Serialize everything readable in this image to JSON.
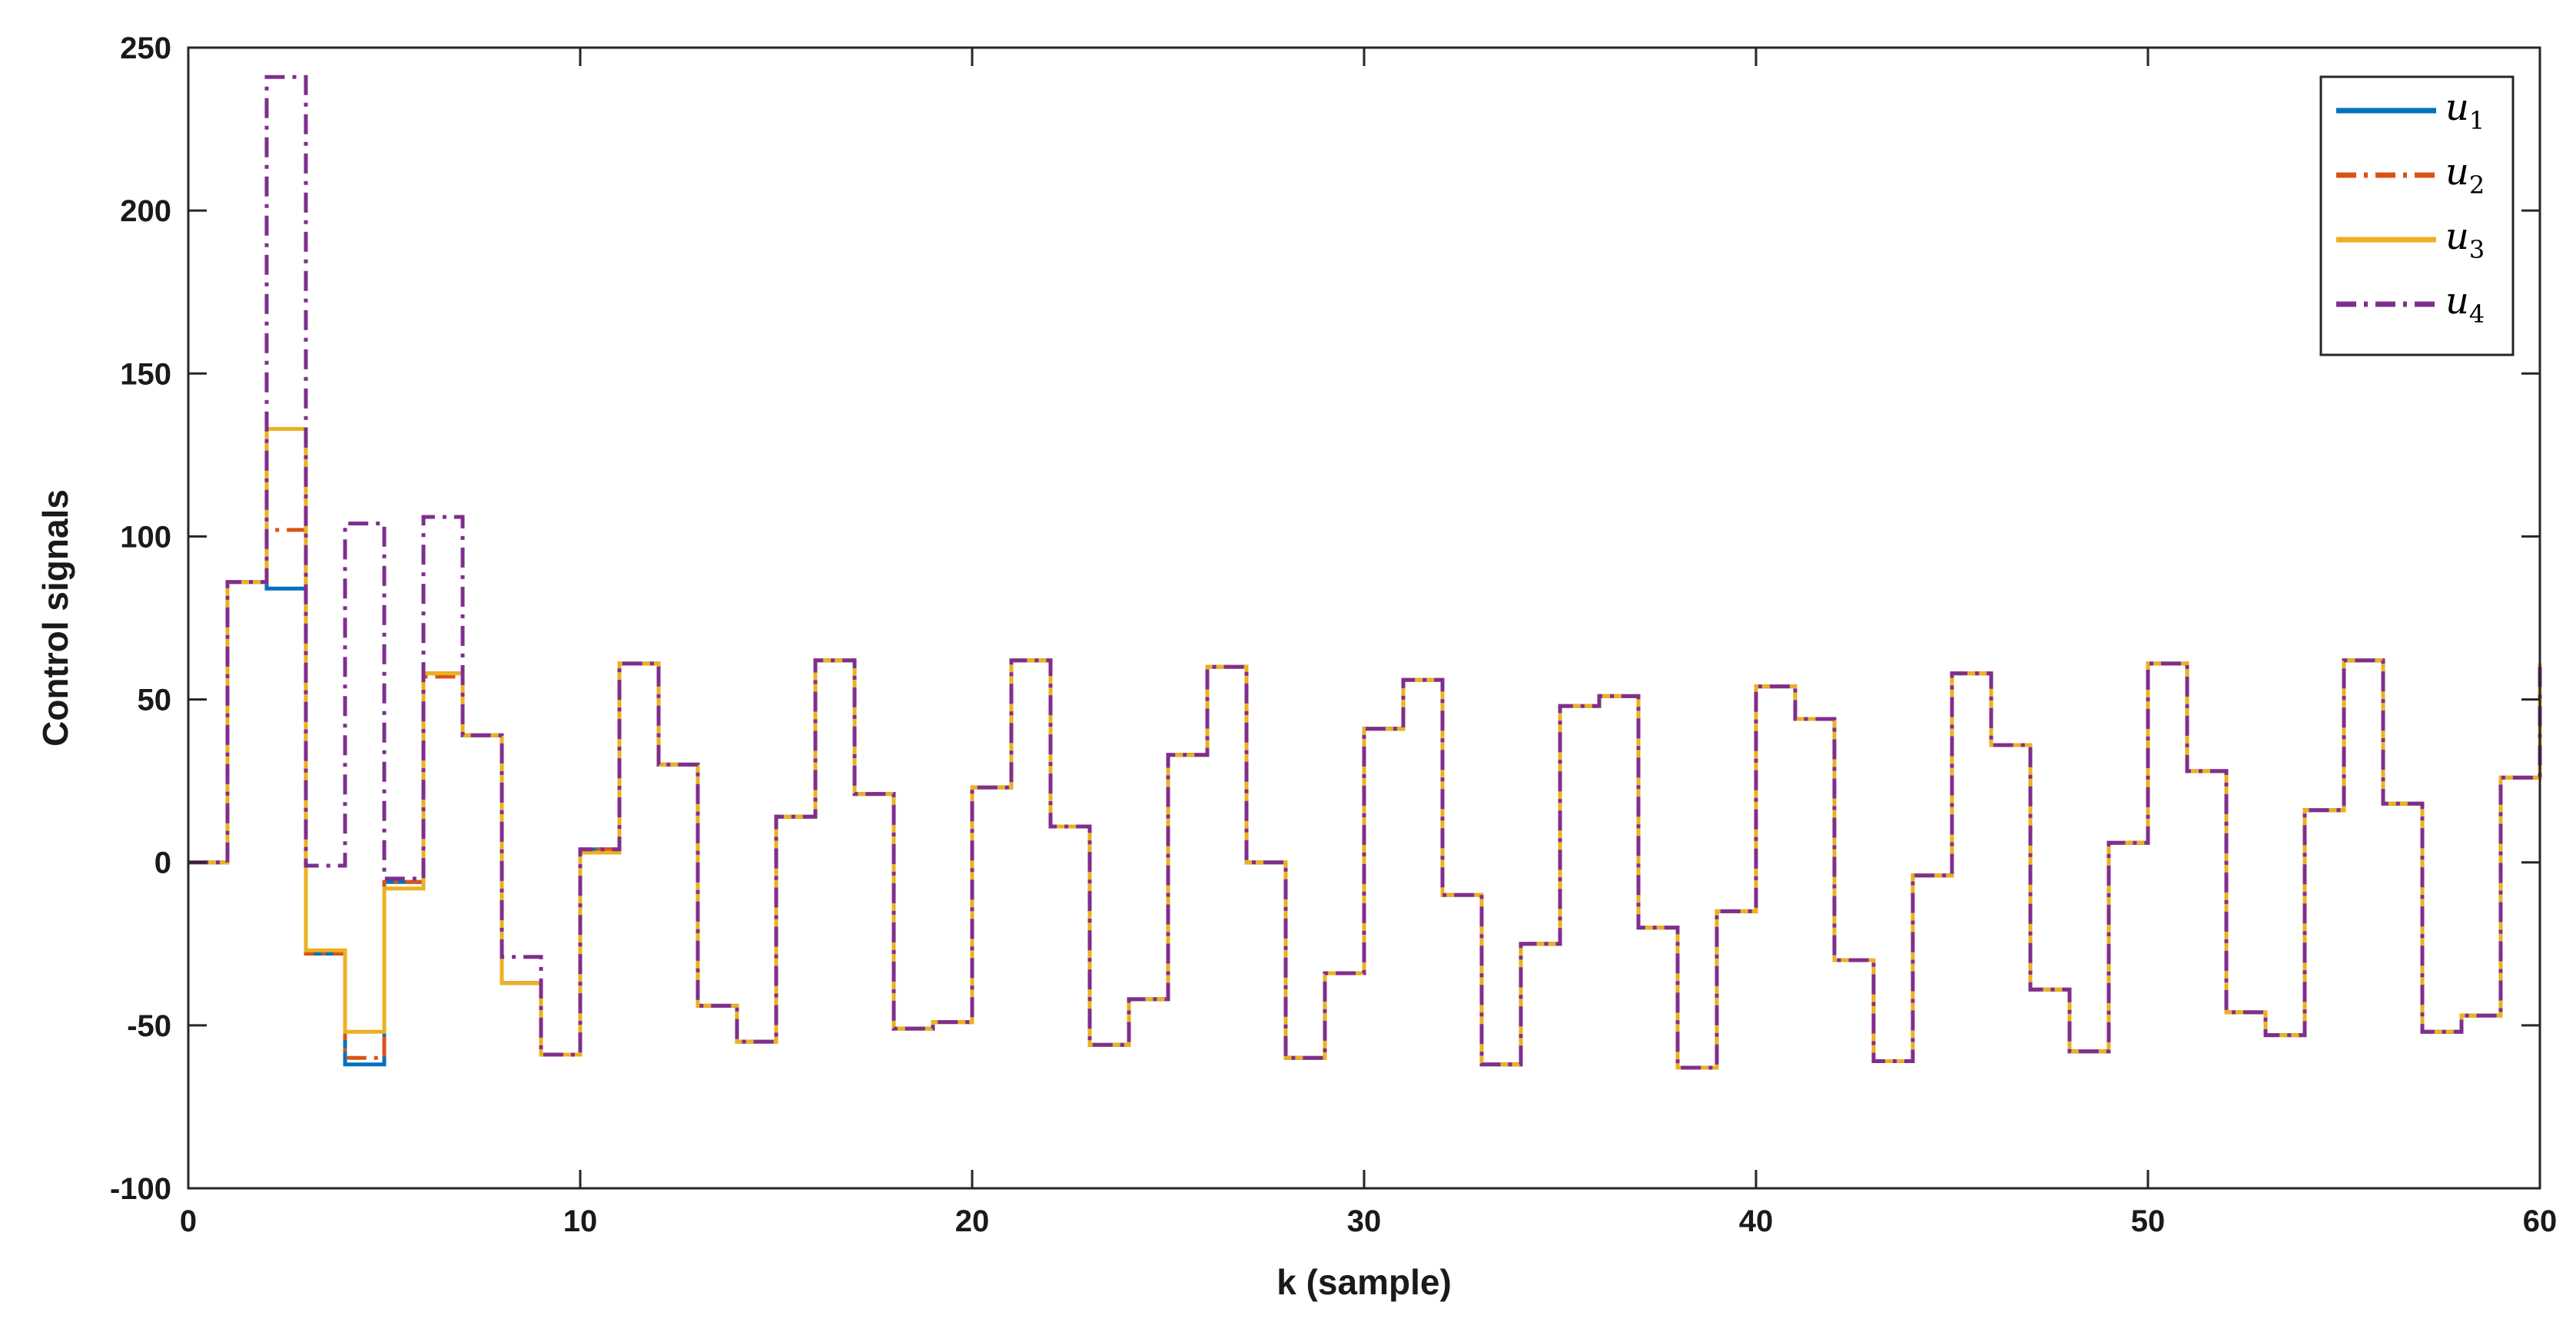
{
  "chart_data": {
    "type": "line",
    "step": "post",
    "title": "",
    "xlabel": "k (sample)",
    "ylabel": "Control signals",
    "xlim": [
      0,
      60
    ],
    "ylim": [
      -100,
      250
    ],
    "xticks": [
      0,
      10,
      20,
      30,
      40,
      50,
      60
    ],
    "yticks": [
      -100,
      -50,
      0,
      50,
      100,
      150,
      200,
      250
    ],
    "grid": false,
    "legend_position": "top-right",
    "x": [
      0,
      1,
      2,
      3,
      4,
      5,
      6,
      7,
      8,
      9,
      10,
      11,
      12,
      13,
      14,
      15,
      16,
      17,
      18,
      19,
      20,
      21,
      22,
      23,
      24,
      25,
      26,
      27,
      28,
      29,
      30,
      31,
      32,
      33,
      34,
      35,
      36,
      37,
      38,
      39,
      40,
      41,
      42,
      43,
      44,
      45,
      46,
      47,
      48,
      49,
      50,
      51,
      52,
      53,
      54,
      55,
      56,
      57,
      58,
      59,
      60
    ],
    "series": [
      {
        "name": "u",
        "subscript": "1",
        "color": "#0072BD",
        "dash": "solid",
        "values": [
          0,
          86,
          84,
          -28,
          -62,
          -6,
          58,
          39,
          -37,
          -59,
          4,
          61,
          30,
          -44,
          -55,
          14,
          62,
          21,
          -51,
          -49,
          23,
          62,
          11,
          -56,
          -42,
          33,
          60,
          0,
          -60,
          -34,
          41,
          56,
          -10,
          -62,
          -25,
          48,
          51,
          -20,
          -63,
          -15,
          54,
          44,
          -30,
          -61,
          -4,
          58,
          36,
          -39,
          -58,
          6,
          61,
          28,
          -46,
          -53,
          16,
          62,
          18,
          -52,
          -47,
          26,
          61
        ]
      },
      {
        "name": "u",
        "subscript": "2",
        "color": "#D95319",
        "dash": "dashdot",
        "values": [
          0,
          86,
          102,
          -28,
          -60,
          -6,
          57,
          39,
          -37,
          -59,
          4,
          61,
          30,
          -44,
          -55,
          14,
          62,
          21,
          -51,
          -49,
          23,
          62,
          11,
          -56,
          -42,
          33,
          60,
          0,
          -60,
          -34,
          41,
          56,
          -10,
          -62,
          -25,
          48,
          51,
          -20,
          -63,
          -15,
          54,
          44,
          -30,
          -61,
          -4,
          58,
          36,
          -39,
          -58,
          6,
          61,
          28,
          -46,
          -53,
          16,
          62,
          18,
          -52,
          -47,
          26,
          61
        ]
      },
      {
        "name": "u",
        "subscript": "3",
        "color": "#EDB120",
        "dash": "solid",
        "values": [
          0,
          86,
          133,
          -27,
          -52,
          -8,
          58,
          39,
          -37,
          -59,
          3,
          61,
          30,
          -44,
          -55,
          14,
          62,
          21,
          -51,
          -49,
          23,
          62,
          11,
          -56,
          -42,
          33,
          60,
          0,
          -60,
          -34,
          41,
          56,
          -10,
          -62,
          -25,
          48,
          51,
          -20,
          -63,
          -15,
          54,
          44,
          -30,
          -61,
          -4,
          58,
          36,
          -39,
          -58,
          6,
          61,
          28,
          -46,
          -53,
          16,
          62,
          18,
          -52,
          -47,
          26,
          61
        ]
      },
      {
        "name": "u",
        "subscript": "4",
        "color": "#7E2F8E",
        "dash": "dashdot",
        "values": [
          0,
          86,
          241,
          -1,
          104,
          -5,
          106,
          39,
          -29,
          -59,
          4,
          61,
          30,
          -44,
          -55,
          14,
          62,
          21,
          -51,
          -49,
          23,
          62,
          11,
          -56,
          -42,
          33,
          60,
          0,
          -60,
          -34,
          41,
          56,
          -10,
          -62,
          -25,
          48,
          51,
          -20,
          -63,
          -15,
          54,
          44,
          -30,
          -61,
          -4,
          58,
          36,
          -39,
          -58,
          6,
          61,
          28,
          -46,
          -53,
          16,
          62,
          18,
          -52,
          -47,
          26,
          61
        ]
      }
    ]
  }
}
